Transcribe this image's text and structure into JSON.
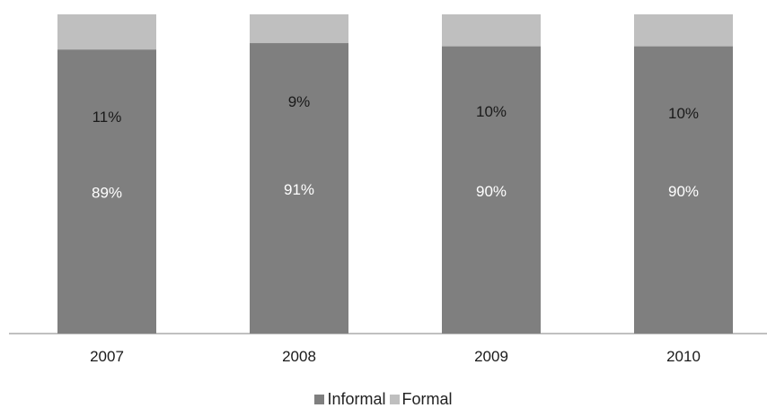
{
  "chart_data": {
    "type": "bar",
    "stacked": true,
    "categories": [
      "2007",
      "2008",
      "2009",
      "2010"
    ],
    "series": [
      {
        "name": "Informal",
        "color": "#7f7f7f",
        "values": [
          0.89,
          0.91,
          0.9,
          0.9
        ],
        "labels": [
          "89%",
          "91%",
          "90%",
          "90%"
        ]
      },
      {
        "name": "Formal",
        "color": "#bfbfbf",
        "values": [
          0.11,
          0.09,
          0.1,
          0.1
        ],
        "labels": [
          "11%",
          "9%",
          "10%",
          "10%"
        ]
      }
    ],
    "legend": "bottom",
    "grid": false
  }
}
